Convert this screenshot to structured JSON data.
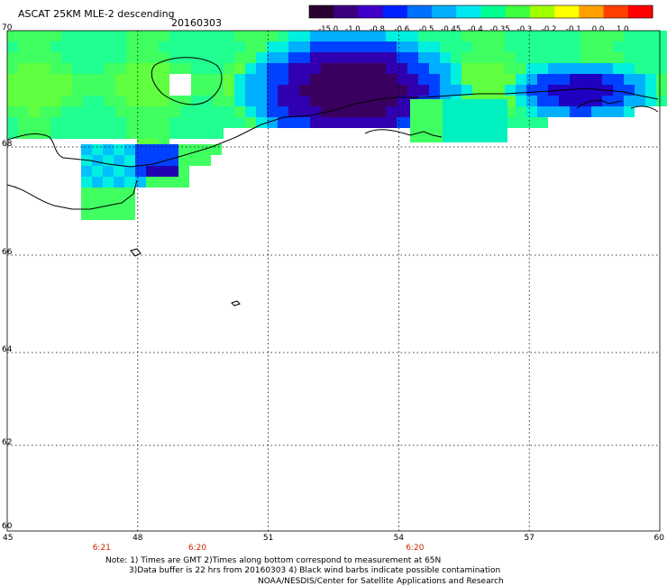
{
  "title": "ASCAT 25KM MLE-2 descending",
  "date": "20160303",
  "colorbar": {
    "labels": [
      "-15.0",
      "-1.0",
      "-0.8",
      "-0.6",
      "-0.5",
      "-0.45",
      "-0.4",
      "-0.35",
      "-0.3",
      "-0.2",
      "-0.1",
      "0.0",
      "1.0"
    ],
    "colors": [
      "#2a0030",
      "#3a0080",
      "#4000c8",
      "#0020ff",
      "#0070ff",
      "#00b0ff",
      "#00e8f0",
      "#00ff90",
      "#40ff40",
      "#a0ff00",
      "#ffff00",
      "#ffa000",
      "#ff4000",
      "#ff0000"
    ]
  },
  "axes": {
    "lat_labels": [
      "70",
      "68",
      "66",
      "64",
      "62",
      "60"
    ],
    "lon_labels": [
      "45",
      "48",
      "51",
      "54",
      "57",
      "60"
    ]
  },
  "times": [
    {
      "label": "6:21",
      "lon": 48
    },
    {
      "label": "6:20",
      "lon": 50.2
    },
    {
      "label": "6:20",
      "lon": 55.2
    }
  ],
  "notes": {
    "line1": "Note: 1) Times are GMT 2)Times along bottom correspond to measurement at 65N",
    "line2": "3)Data buffer is 22 hrs from 20160303 4) Black wind barbs indicate possible contamination",
    "line3": "NOAA/NESDIS/Center for Satellite Applications and Research"
  }
}
